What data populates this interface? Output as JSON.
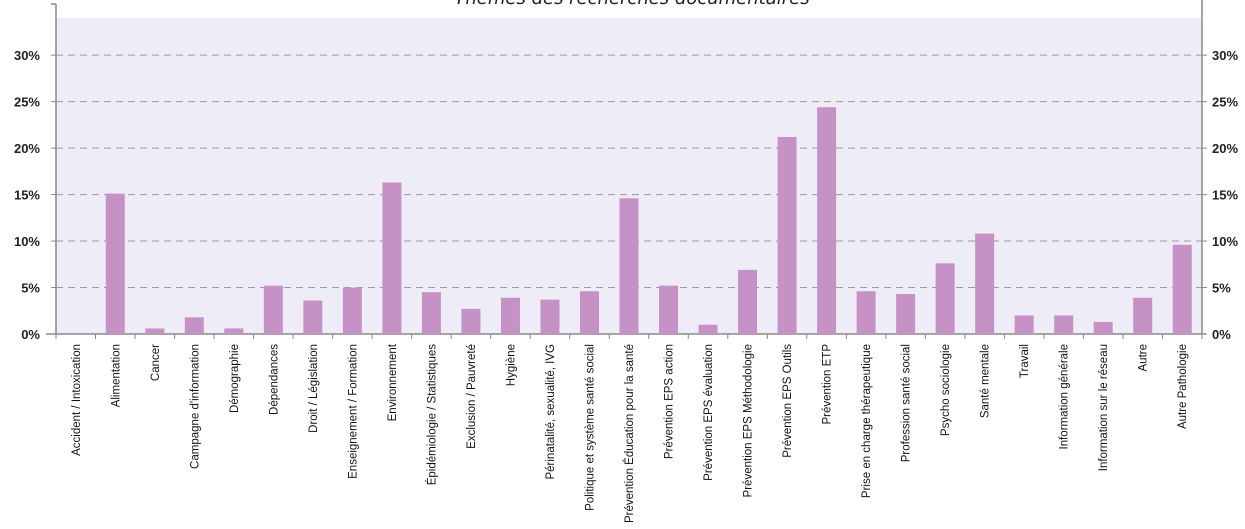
{
  "chart_data": {
    "type": "bar",
    "title": "Thèmes des recherches documentaires",
    "categories": [
      "Accident / Intoxication",
      "Alimentation",
      "Cancer",
      "Campagne d'information",
      "Démographie",
      "Dépendances",
      "Droit / Législation",
      "Enseignement / Formation",
      "Environnement",
      "Épidémiologie / Statistiques",
      "Exclusion / Pauvreté",
      "Hygiène",
      "Périnatalité, sexualité, IVG",
      "Politique et système santé social",
      "Prévention Éducation pour la santé",
      "Prévention EPS action",
      "Prévention EPS évaluation",
      "Prévention EPS Méthodologie",
      "Prévention EPS Outils",
      "Prévention ETP",
      "Prise en charge thérapeutique",
      "Profession santé social",
      "Psycho sociologie",
      "Santé mentale",
      "Travail",
      "Information générale",
      "Information sur le réseau",
      "Autre",
      "Autre Pathologie"
    ],
    "values": [
      0,
      15.1,
      0.6,
      1.8,
      0.6,
      5.2,
      3.6,
      5.0,
      16.3,
      4.5,
      2.7,
      3.9,
      3.7,
      4.6,
      14.6,
      5.2,
      1.0,
      6.9,
      21.2,
      24.4,
      4.6,
      4.3,
      7.6,
      10.8,
      2.0,
      2.0,
      1.3,
      3.9,
      9.6
    ],
    "y_ticks": [
      "0%",
      "5%",
      "10%",
      "15%",
      "20%",
      "25%",
      "30%"
    ],
    "ylim": [
      0,
      34
    ],
    "grid": true,
    "bar_color": "#c692c6",
    "plot_background": "#eeecf6",
    "grid_color": "#9a9a9a"
  }
}
